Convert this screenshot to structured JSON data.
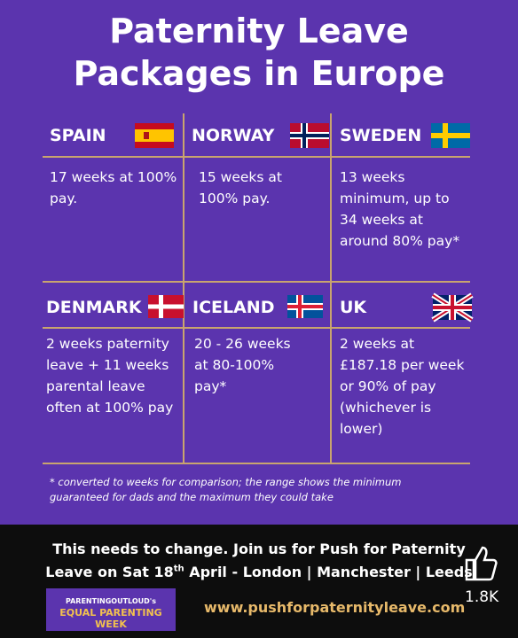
{
  "header": {
    "title_lines": [
      "Paternity Leave",
      "Packages in Europe"
    ]
  },
  "countries": [
    {
      "name": "SPAIN",
      "text": "17 weeks at 100% pay."
    },
    {
      "name": "NORWAY",
      "text": "15 weeks at 100% pay."
    },
    {
      "name": "SWEDEN",
      "text": "13 weeks minimum, up to 34 weeks at around 80% pay*"
    },
    {
      "name": "DENMARK",
      "text": "2 weeks paternity leave + 11 weeks parental leave often at 100% pay"
    },
    {
      "name": "ICELAND",
      "text": "20 - 26 weeks at 80-100% pay*"
    },
    {
      "name": "UK",
      "text": "2 weeks at £187.18 per week or 90% of pay (whichever is lower)"
    }
  ],
  "footnote": "* converted to weeks for comparison; the range shows the minimum guaranteed for dads and the maximum they could take",
  "banner": {
    "line1": "This needs to change. Join us for Push for Paternity",
    "line2_before": "Leave on Sat 18",
    "line2_sup": "th",
    "line2_after": " April - London | Manchester | Leeds",
    "logo_top": "PARENTINGOUTLOUD's",
    "logo_bottom": "EQUAL PARENTING WEEK",
    "url": "www.pushforpaternityleave.com"
  },
  "likes": "1.8K"
}
